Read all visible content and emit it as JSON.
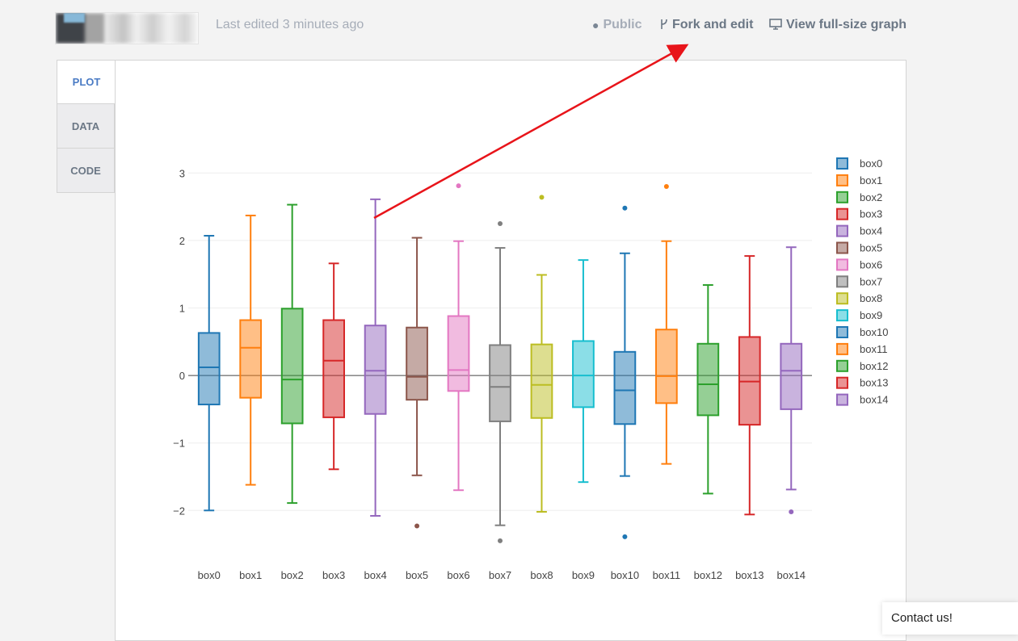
{
  "header": {
    "edited_text": "Last edited 3 minutes ago",
    "public_label": "Public",
    "fork_label": "Fork and edit",
    "fullsize_label": "View full-size graph"
  },
  "tabs": [
    {
      "label": "PLOT",
      "active": true
    },
    {
      "label": "DATA",
      "active": false
    },
    {
      "label": "CODE",
      "active": false
    }
  ],
  "contact_label": "Contact us!",
  "colors": {
    "arrow": "#e8141a",
    "active_tab": "#4a7bc4"
  },
  "chart_data": {
    "type": "box",
    "y_ticks": [
      3,
      2,
      1,
      0,
      -1,
      -2
    ],
    "y_tick_labels": [
      "3",
      "2",
      "1",
      "0",
      "−1",
      "−2"
    ],
    "ylim": [
      -2.75,
      3.35
    ],
    "grid": true,
    "legend_position": "right",
    "series": [
      {
        "name": "box0",
        "color": "#1f77b4",
        "min": -2.0,
        "q1": -0.43,
        "median": 0.12,
        "q3": 0.63,
        "max": 2.07,
        "outliers": []
      },
      {
        "name": "box1",
        "color": "#ff7f0e",
        "min": -1.62,
        "q1": -0.33,
        "median": 0.41,
        "q3": 0.82,
        "max": 2.37,
        "outliers": []
      },
      {
        "name": "box2",
        "color": "#2ca02c",
        "min": -1.89,
        "q1": -0.71,
        "median": -0.06,
        "q3": 0.99,
        "max": 2.53,
        "outliers": []
      },
      {
        "name": "box3",
        "color": "#d62728",
        "min": -1.39,
        "q1": -0.62,
        "median": 0.22,
        "q3": 0.82,
        "max": 1.66,
        "outliers": []
      },
      {
        "name": "box4",
        "color": "#9467bd",
        "min": -2.08,
        "q1": -0.57,
        "median": 0.07,
        "q3": 0.74,
        "max": 2.61,
        "outliers": []
      },
      {
        "name": "box5",
        "color": "#8c564b",
        "min": -1.48,
        "q1": -0.36,
        "median": -0.02,
        "q3": 0.71,
        "max": 2.04,
        "outliers": [
          -2.23
        ]
      },
      {
        "name": "box6",
        "color": "#e377c2",
        "min": -1.7,
        "q1": -0.23,
        "median": 0.08,
        "q3": 0.88,
        "max": 1.99,
        "outliers": [
          2.81
        ]
      },
      {
        "name": "box7",
        "color": "#7f7f7f",
        "min": -2.22,
        "q1": -0.68,
        "median": -0.17,
        "q3": 0.45,
        "max": 1.89,
        "outliers": [
          2.25,
          -2.45
        ]
      },
      {
        "name": "box8",
        "color": "#bcbd22",
        "min": -2.02,
        "q1": -0.63,
        "median": -0.14,
        "q3": 0.46,
        "max": 1.49,
        "outliers": [
          2.64
        ]
      },
      {
        "name": "box9",
        "color": "#17becf",
        "min": -1.58,
        "q1": -0.47,
        "median": 0.0,
        "q3": 0.51,
        "max": 1.71,
        "outliers": []
      },
      {
        "name": "box10",
        "color": "#1f77b4",
        "min": -1.49,
        "q1": -0.72,
        "median": -0.22,
        "q3": 0.35,
        "max": 1.81,
        "outliers": [
          2.48,
          -2.39
        ]
      },
      {
        "name": "box11",
        "color": "#ff7f0e",
        "min": -1.31,
        "q1": -0.41,
        "median": -0.01,
        "q3": 0.68,
        "max": 1.99,
        "outliers": [
          2.8
        ]
      },
      {
        "name": "box12",
        "color": "#2ca02c",
        "min": -1.75,
        "q1": -0.59,
        "median": -0.13,
        "q3": 0.47,
        "max": 1.34,
        "outliers": []
      },
      {
        "name": "box13",
        "color": "#d62728",
        "min": -2.06,
        "q1": -0.73,
        "median": -0.09,
        "q3": 0.57,
        "max": 1.77,
        "outliers": []
      },
      {
        "name": "box14",
        "color": "#9467bd",
        "min": -1.69,
        "q1": -0.5,
        "median": 0.07,
        "q3": 0.47,
        "max": 1.9,
        "outliers": [
          -2.02
        ]
      }
    ]
  }
}
